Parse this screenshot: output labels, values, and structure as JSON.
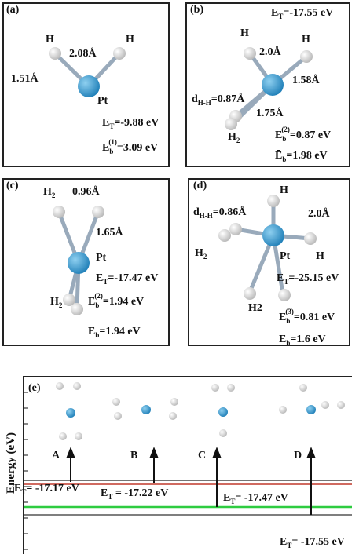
{
  "panels": [
    {
      "tag": "(a)",
      "labels": [
        {
          "main": "H"
        },
        {
          "main": "2.08Å"
        },
        {
          "main": "H"
        },
        {
          "main": "1.51Å"
        },
        {
          "main": "Pt"
        },
        {
          "main": "E",
          "sub": "T",
          "rest": "=-9.88 eV"
        },
        {
          "main": "E",
          "sub": "b",
          "sup": "(1)",
          "rest": "=3.09 eV"
        }
      ]
    },
    {
      "tag": "(b)",
      "labels": [
        {
          "main": "E",
          "sub": "T",
          "rest": "=-17.55 eV"
        },
        {
          "main": "H"
        },
        {
          "main": "H"
        },
        {
          "main": "2.0Å"
        },
        {
          "main": "1.58Å"
        },
        {
          "main": "d",
          "sub": "H-H",
          "rest": "=0.87Å"
        },
        {
          "main": "1.75Å"
        },
        {
          "main": "H",
          "sub": "2"
        },
        {
          "main": "E",
          "sub": "b",
          "sup": "(2)",
          "rest": "=0.87 eV"
        },
        {
          "main": "Ē",
          "sub": "b",
          "rest": "=1.98 eV"
        }
      ]
    },
    {
      "tag": "(c)",
      "labels": [
        {
          "main": "H",
          "sub": "2"
        },
        {
          "main": "0.96Å"
        },
        {
          "main": "1.65Å"
        },
        {
          "main": "Pt"
        },
        {
          "main": "E",
          "sub": "T",
          "rest": "=-17.47 eV"
        },
        {
          "main": "H",
          "sub": "2"
        },
        {
          "main": "E",
          "sub": "b",
          "sup": "(2)",
          "rest": "=1.94 eV"
        },
        {
          "main": "Ē",
          "sub": "b",
          "rest": "=1.94 eV"
        }
      ]
    },
    {
      "tag": "(d)",
      "labels": [
        {
          "main": "H"
        },
        {
          "main": "d",
          "sub": "H-H",
          "rest": "=0.86Å"
        },
        {
          "main": "2.0Å"
        },
        {
          "main": "H",
          "sub": "2"
        },
        {
          "main": "Pt"
        },
        {
          "main": "H"
        },
        {
          "main": "E",
          "sub": "T",
          "rest": "=-25.15 eV"
        },
        {
          "main": "H",
          "rest": "2"
        },
        {
          "main": "E",
          "sub": "b",
          "sup": "(3)",
          "rest": "=0.81 eV"
        },
        {
          "main": "Ē",
          "sub": "b",
          "rest": "=1.6 eV"
        }
      ]
    },
    {
      "tag": "(e)",
      "labels": [
        {
          "main": "Energy (eV)"
        },
        {
          "main": "A"
        },
        {
          "main": "B"
        },
        {
          "main": "C"
        },
        {
          "main": "D"
        },
        {
          "main": "E",
          "sub": "T",
          "rest": "= -17.17 eV"
        },
        {
          "main": "E",
          "sub": "T",
          "rest": " = -17.22 eV"
        },
        {
          "main": "E",
          "sub": "T",
          "rest": "= -17.47 eV"
        },
        {
          "main": "E",
          "sub": "T",
          "rest": "= -17.55 eV"
        }
      ]
    }
  ]
}
